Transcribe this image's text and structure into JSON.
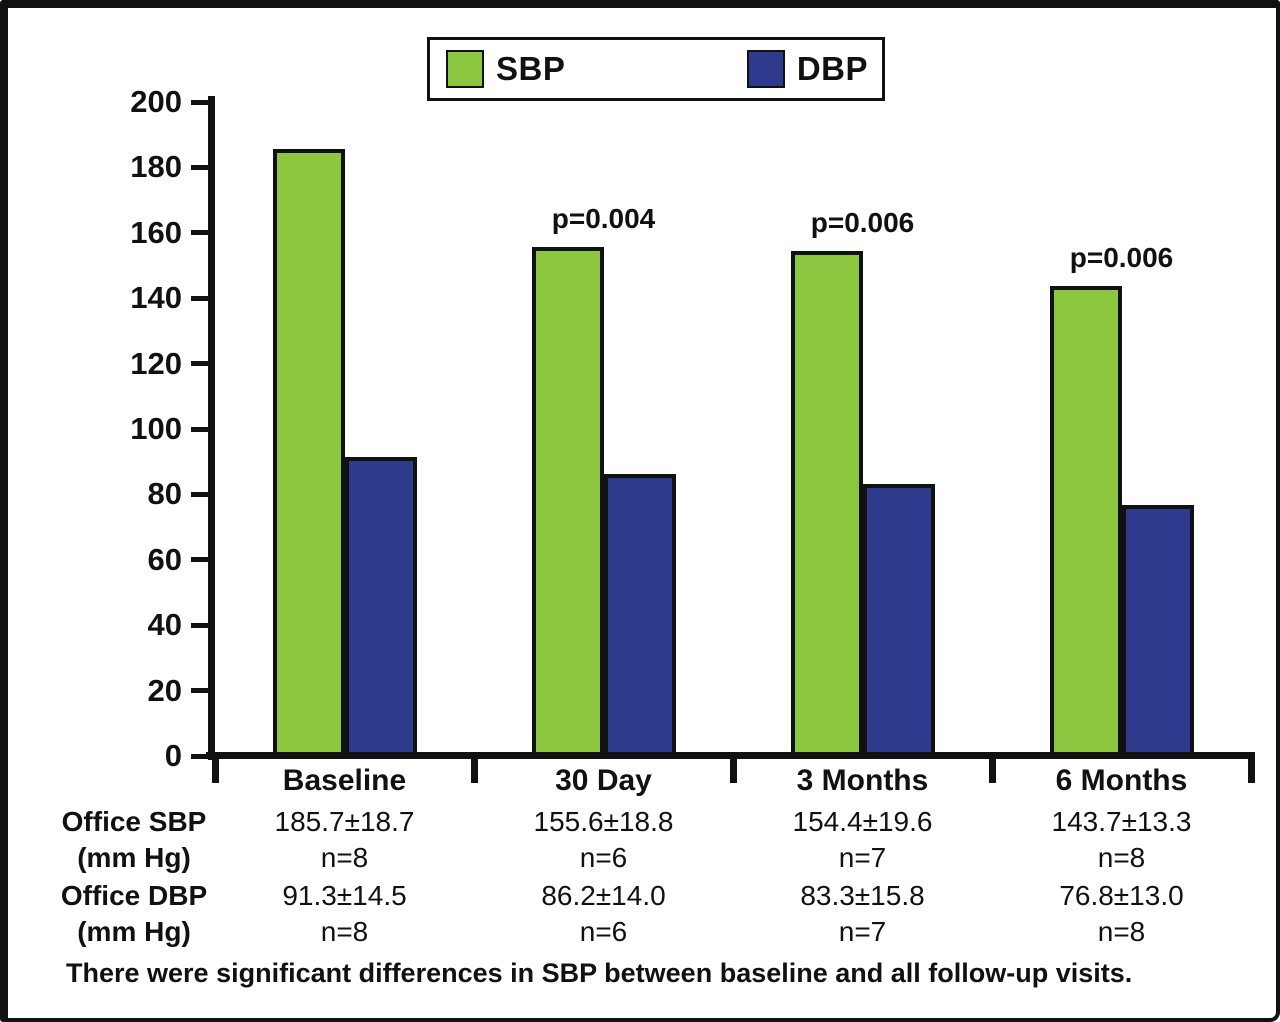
{
  "legend": {
    "items": [
      {
        "label": "SBP",
        "color": "#8DC63F"
      },
      {
        "label": "DBP",
        "color": "#2E3A8C"
      }
    ]
  },
  "chart_data": {
    "type": "bar",
    "title": "",
    "categories": [
      "Baseline",
      "30 Day",
      "3 Months",
      "6 Months"
    ],
    "series": [
      {
        "name": "SBP",
        "color": "#8DC63F",
        "values": [
          185.7,
          155.6,
          154.4,
          143.7
        ]
      },
      {
        "name": "DBP",
        "color": "#2E3A8C",
        "values": [
          91.3,
          86.2,
          83.3,
          76.8
        ]
      }
    ],
    "p_values": [
      "",
      "p=0.004",
      "p=0.006",
      "p=0.006"
    ],
    "xlabel": "",
    "ylabel": "",
    "ylim": [
      0,
      200
    ],
    "ytick_labels": [
      "0",
      "20",
      "40",
      "60",
      "80",
      "100",
      "120",
      "140",
      "160",
      "180",
      "200"
    ],
    "grid": false,
    "legend_position": "top"
  },
  "table": {
    "rows": [
      {
        "label_line1": "Office SBP",
        "label_line2": "(mm Hg)",
        "cells": [
          {
            "value": "185.7±18.7",
            "n": "n=8"
          },
          {
            "value": "155.6±18.8",
            "n": "n=6"
          },
          {
            "value": "154.4±19.6",
            "n": "n=7"
          },
          {
            "value": "143.7±13.3",
            "n": "n=8"
          }
        ]
      },
      {
        "label_line1": "Office DBP",
        "label_line2": "(mm Hg)",
        "cells": [
          {
            "value": "91.3±14.5",
            "n": "n=8"
          },
          {
            "value": "86.2±14.0",
            "n": "n=6"
          },
          {
            "value": "83.3±15.8",
            "n": "n=7"
          },
          {
            "value": "76.8±13.0",
            "n": "n=8"
          }
        ]
      }
    ]
  },
  "footnote": "There were significant differences in SBP between baseline and all follow-up visits."
}
